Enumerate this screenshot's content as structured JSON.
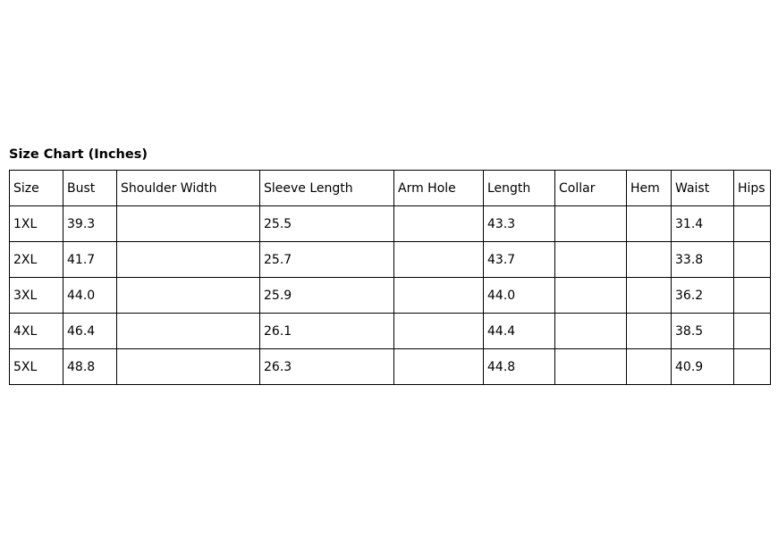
{
  "title": "Size Chart (Inches)",
  "headers": [
    "Size",
    "Bust",
    "Shoulder Width",
    "Sleeve Length",
    "Arm Hole",
    "Length",
    "Collar",
    "Hem",
    "Waist",
    "Hips"
  ],
  "rows": [
    [
      "1XL",
      "39.3",
      "",
      "25.5",
      "",
      "43.3",
      "",
      "",
      "31.4",
      ""
    ],
    [
      "2XL",
      "41.7",
      "",
      "25.7",
      "",
      "43.7",
      "",
      "",
      "33.8",
      ""
    ],
    [
      "3XL",
      "44.0",
      "",
      "25.9",
      "",
      "44.0",
      "",
      "",
      "36.2",
      ""
    ],
    [
      "4XL",
      "46.4",
      "",
      "26.1",
      "",
      "44.4",
      "",
      "",
      "38.5",
      ""
    ],
    [
      "5XL",
      "48.8",
      "",
      "26.3",
      "",
      "44.8",
      "",
      "",
      "40.9",
      ""
    ]
  ]
}
